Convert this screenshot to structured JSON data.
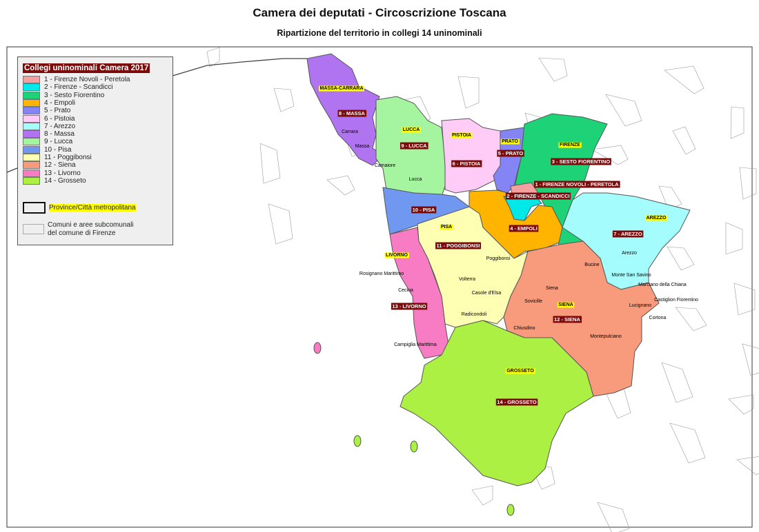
{
  "header": {
    "title": "Camera dei deputati - Circoscrizione Toscana",
    "subtitle": "Ripartizione del territorio in collegi 14 uninominali"
  },
  "legend": {
    "title": "Collegi uninominali Camera 2017",
    "items": [
      {
        "label": "1 - Firenze Novoli - Peretola",
        "color": "#f4a0a0"
      },
      {
        "label": "2 - Firenze - Scandicci",
        "color": "#00e8e8"
      },
      {
        "label": "3 - Sesto Fiorentino",
        "color": "#1ed278"
      },
      {
        "label": "4 - Empoli",
        "color": "#ffb400"
      },
      {
        "label": "5 - Prato",
        "color": "#8484f4"
      },
      {
        "label": "6 - Pistoia",
        "color": "#ffccf8"
      },
      {
        "label": "7 - Arezzo",
        "color": "#a4fcfc"
      },
      {
        "label": "8 - Massa",
        "color": "#b074f0"
      },
      {
        "label": "9 - Lucca",
        "color": "#a4f4a0"
      },
      {
        "label": "10 - Pisa",
        "color": "#7098f0"
      },
      {
        "label": "11 - Poggibonsi",
        "color": "#ffffb4"
      },
      {
        "label": "12 - Siena",
        "color": "#f89a7c"
      },
      {
        "label": "13 - Livorno",
        "color": "#f87cc4"
      },
      {
        "label": "14 - Grosseto",
        "color": "#acf044"
      }
    ],
    "province_label": "Province/Città metropolitana",
    "comuni_label": "Comuni e aree subcomunali del comune di Firenze"
  },
  "map": {
    "collegi_labels": [
      "8 - MASSA",
      "9 - LUCCA",
      "6 - PISTOIA",
      "5 - PRATO",
      "3 - SESTO FIORENTINO",
      "1 - FIRENZE NOVOLI - PERETOLA",
      "2 - FIRENZE - SCANDICCI",
      "10 - PISA",
      "4 - EMPOLI",
      "7 - AREZZO",
      "11 - POGGIBONSI",
      "13 - LIVORNO",
      "12 - SIENA",
      "14 - GROSSETO"
    ],
    "province_labels": [
      "MASSA-CARRARA",
      "LUCCA",
      "PISTOIA",
      "PRATO",
      "FIRENZE",
      "AREZZO",
      "PISA",
      "LIVORNO",
      "SIENA",
      "GROSSETO"
    ],
    "city_labels": [
      "Carrara",
      "Massa",
      "Camaiore",
      "Lucca",
      "Poggibonsi",
      "Rosignano Marittimo",
      "Cecina",
      "Volterra",
      "Casole d'Elsa",
      "Radicondoli",
      "Siena",
      "Sovicille",
      "Chiusdino",
      "Montepulciano",
      "Bucine",
      "Arezzo",
      "Monte San Savino",
      "Marciano della Chiana",
      "Castiglion Fiorentino",
      "Lucignano",
      "Cortona",
      "Campiglia Marittima"
    ],
    "collegio_label_color": "#7b0b0b",
    "province_label_color": "#ffff00"
  }
}
